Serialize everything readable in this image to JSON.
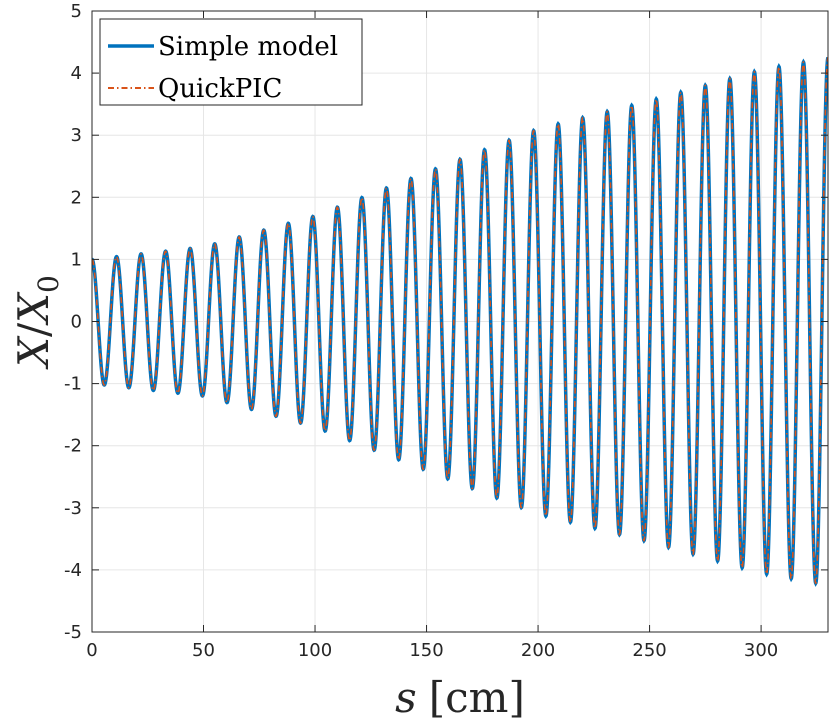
{
  "chart_data": {
    "type": "line",
    "title": "",
    "xlabel": "s [cm]",
    "xlabel_var": "s",
    "xlabel_unit": "[cm]",
    "ylabel": "X/X_0",
    "ylabel_num": "X",
    "ylabel_slash": "/",
    "ylabel_den": "X",
    "ylabel_sub": "0",
    "xlim": [
      0,
      330
    ],
    "ylim": [
      -5,
      5
    ],
    "grid": true,
    "legend_position": "top-left",
    "x_ticks": [
      0,
      50,
      100,
      150,
      200,
      250,
      300
    ],
    "y_ticks": [
      -5,
      -4,
      -3,
      -2,
      -1,
      0,
      1,
      2,
      3,
      4,
      5
    ],
    "oscillation": {
      "period_cm": 11.0,
      "peaks": [
        {
          "s": 0,
          "value": 1.0
        },
        {
          "s": 50,
          "value": 1.2
        },
        {
          "s": 100,
          "value": 1.7
        },
        {
          "s": 150,
          "value": 2.4
        },
        {
          "s": 200,
          "value": 3.1
        },
        {
          "s": 250,
          "value": 3.55
        },
        {
          "s": 300,
          "value": 4.05
        },
        {
          "s": 330,
          "value": 4.25
        }
      ]
    },
    "series": [
      {
        "name": "Simple model",
        "color": "#0072BD",
        "style": "solid"
      },
      {
        "name": "QuickPIC",
        "color": "#D95319",
        "style": "dash-dot"
      }
    ]
  }
}
